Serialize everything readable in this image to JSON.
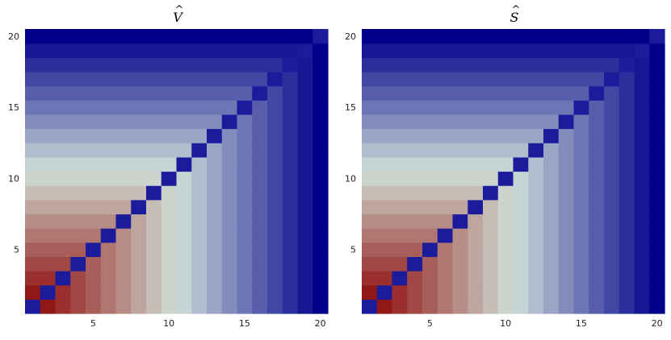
{
  "chart_data": [
    {
      "type": "heatmap",
      "title": "V̂",
      "title_base": "V",
      "title_accent": "^",
      "n": 20,
      "x_ticks": [
        5,
        10,
        15,
        20
      ],
      "y_ticks": [
        5,
        10,
        15,
        20
      ],
      "xlim": [
        0.5,
        20.5
      ],
      "ylim": [
        0.5,
        20.5
      ],
      "cell_rule": "value(i,j) = max(i,j) off-diagonal; diagonal cells = low end of scale",
      "colormap": [
        "#8b0000",
        "#d0e0d8",
        "#00008b"
      ],
      "grid": false,
      "legend": "none"
    },
    {
      "type": "heatmap",
      "title": "Ŝ",
      "title_base": "S",
      "title_accent": "^",
      "n": 20,
      "x_ticks": [
        5,
        10,
        15,
        20
      ],
      "y_ticks": [
        5,
        10,
        15,
        20
      ],
      "xlim": [
        0.5,
        20.5
      ],
      "ylim": [
        0.5,
        20.5
      ],
      "cell_rule": "value(i,j) = max(i,j) off-diagonal; diagonal cells = low end of scale",
      "colormap": [
        "#8b0000",
        "#d0e0d8",
        "#00008b"
      ],
      "grid": false,
      "legend": "none"
    }
  ]
}
